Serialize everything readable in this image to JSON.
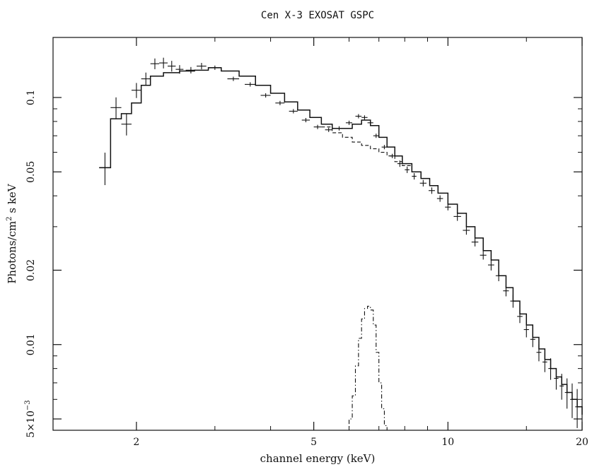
{
  "chart_data": {
    "type": "line",
    "title": "Cen X-3 EXOSAT GSPC",
    "xlabel": "channel energy (keV)",
    "ylabel_main": "Photons/cm",
    "ylabel_sup": "2",
    "ylabel_rest": " s keV",
    "x_scale": "log",
    "y_scale": "log",
    "xlim": [
      1.3,
      20
    ],
    "ylim": [
      0.0045,
      0.175
    ],
    "grid": false,
    "x_ticks": [
      {
        "value": 2,
        "label": "2"
      },
      {
        "value": 5,
        "label": "5"
      },
      {
        "value": 10,
        "label": "10"
      },
      {
        "value": 20,
        "label": "20"
      }
    ],
    "y_ticks": [
      {
        "value": 0.005,
        "label": "5×10",
        "sup": "−3"
      },
      {
        "value": 0.01,
        "label": "0.01",
        "sup": ""
      },
      {
        "value": 0.02,
        "label": "0.02",
        "sup": ""
      },
      {
        "value": 0.05,
        "label": "0.05",
        "sup": ""
      },
      {
        "value": 0.1,
        "label": "0.1",
        "sup": ""
      }
    ],
    "series": [
      {
        "style": "data-points",
        "x": [
          1.7,
          1.8,
          1.9,
          2.0,
          2.1,
          2.2,
          2.3,
          2.4,
          2.5,
          2.65,
          2.8,
          3.0,
          3.3,
          3.6,
          3.9,
          4.2,
          4.5,
          4.8,
          5.1,
          5.4,
          5.7,
          6.0,
          6.3,
          6.5,
          6.7,
          6.9,
          7.2,
          7.5,
          7.8,
          8.1,
          8.4,
          8.8,
          9.2,
          9.6,
          10.0,
          10.5,
          11.0,
          11.5,
          12.0,
          12.5,
          13.0,
          13.5,
          14.0,
          14.5,
          15.0,
          15.5,
          16.0,
          16.5,
          17.0,
          17.5,
          18.0,
          18.5,
          19.0,
          19.5
        ],
        "y": [
          0.052,
          0.091,
          0.078,
          0.107,
          0.119,
          0.137,
          0.138,
          0.134,
          0.13,
          0.129,
          0.134,
          0.132,
          0.119,
          0.113,
          0.102,
          0.095,
          0.088,
          0.081,
          0.076,
          0.074,
          0.075,
          0.079,
          0.084,
          0.083,
          0.079,
          0.07,
          0.063,
          0.058,
          0.054,
          0.051,
          0.048,
          0.045,
          0.042,
          0.039,
          0.036,
          0.033,
          0.029,
          0.026,
          0.023,
          0.021,
          0.019,
          0.0165,
          0.015,
          0.013,
          0.0115,
          0.0105,
          0.0093,
          0.0085,
          0.008,
          0.0073,
          0.0068,
          0.0064,
          0.006,
          0.0056
        ],
        "xerr": [
          0.05,
          0.05,
          0.05,
          0.05,
          0.05,
          0.05,
          0.05,
          0.05,
          0.05,
          0.07,
          0.07,
          0.1,
          0.1,
          0.1,
          0.1,
          0.1,
          0.1,
          0.1,
          0.1,
          0.1,
          0.1,
          0.1,
          0.1,
          0.1,
          0.1,
          0.1,
          0.1,
          0.1,
          0.1,
          0.1,
          0.1,
          0.15,
          0.15,
          0.15,
          0.15,
          0.2,
          0.2,
          0.2,
          0.2,
          0.2,
          0.2,
          0.2,
          0.2,
          0.2,
          0.2,
          0.2,
          0.2,
          0.2,
          0.2,
          0.2,
          0.2,
          0.2,
          0.2,
          0.2
        ],
        "yerr_frac": [
          0.15,
          0.1,
          0.1,
          0.07,
          0.06,
          0.05,
          0.05,
          0.05,
          0.04,
          0.03,
          0.03,
          0.02,
          0.02,
          0.02,
          0.02,
          0.02,
          0.02,
          0.02,
          0.02,
          0.02,
          0.02,
          0.02,
          0.02,
          0.02,
          0.02,
          0.02,
          0.02,
          0.02,
          0.03,
          0.03,
          0.03,
          0.03,
          0.03,
          0.03,
          0.03,
          0.04,
          0.04,
          0.04,
          0.04,
          0.05,
          0.05,
          0.05,
          0.06,
          0.06,
          0.07,
          0.07,
          0.08,
          0.09,
          0.1,
          0.1,
          0.12,
          0.14,
          0.16,
          0.18
        ]
      },
      {
        "style": "solid-step",
        "x": [
          1.65,
          1.75,
          1.85,
          1.95,
          2.05,
          2.15,
          2.3,
          2.5,
          2.7,
          2.9,
          3.1,
          3.4,
          3.7,
          4.0,
          4.3,
          4.6,
          4.9,
          5.2,
          5.5,
          5.8,
          6.1,
          6.4,
          6.7,
          7.0,
          7.3,
          7.6,
          7.9,
          8.3,
          8.7,
          9.1,
          9.5,
          10.0,
          10.5,
          11.0,
          11.5,
          12.0,
          12.5,
          13.0,
          13.5,
          14.0,
          14.5,
          15.0,
          15.5,
          16.0,
          16.5,
          17.0,
          17.5,
          18.0,
          18.5,
          19.0,
          19.5,
          20.0
        ],
        "y": [
          0.052,
          0.082,
          0.086,
          0.095,
          0.112,
          0.122,
          0.126,
          0.128,
          0.129,
          0.132,
          0.128,
          0.122,
          0.112,
          0.104,
          0.096,
          0.089,
          0.083,
          0.078,
          0.075,
          0.075,
          0.078,
          0.081,
          0.077,
          0.069,
          0.063,
          0.058,
          0.054,
          0.05,
          0.047,
          0.044,
          0.041,
          0.037,
          0.034,
          0.03,
          0.027,
          0.024,
          0.022,
          0.019,
          0.017,
          0.015,
          0.0133,
          0.012,
          0.0107,
          0.0096,
          0.0087,
          0.008,
          0.0074,
          0.0069,
          0.0064,
          0.006,
          0.0056,
          0.0052
        ]
      },
      {
        "style": "dashed-step",
        "x": [
          5.2,
          5.5,
          5.8,
          6.1,
          6.4,
          6.7,
          7.0,
          7.3,
          7.6,
          7.9,
          8.3,
          8.7
        ],
        "y": [
          0.076,
          0.072,
          0.069,
          0.066,
          0.064,
          0.062,
          0.06,
          0.058,
          0.055,
          0.053,
          0.05,
          0.047
        ]
      },
      {
        "style": "dash-dot-step",
        "x": [
          5.9,
          6.0,
          6.1,
          6.2,
          6.3,
          6.4,
          6.5,
          6.6,
          6.7,
          6.8,
          6.9,
          7.0,
          7.1,
          7.2,
          7.3
        ],
        "y": [
          0.0045,
          0.005,
          0.0062,
          0.0082,
          0.0106,
          0.0127,
          0.014,
          0.0143,
          0.0138,
          0.012,
          0.0093,
          0.007,
          0.0055,
          0.0047,
          0.0045
        ]
      }
    ]
  }
}
